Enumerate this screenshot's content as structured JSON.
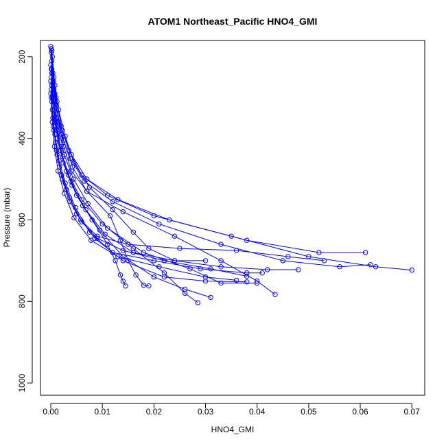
{
  "chart_data": {
    "type": "scatter",
    "title": "ATOM1 Northeast_Pacific HNO4_GMI",
    "xlabel": "HNO4_GMI",
    "ylabel": "Pressure (mbar)",
    "xlim": [
      -0.002,
      0.0725
    ],
    "ylim": [
      1030,
      160
    ],
    "y_reversed": true,
    "x_ticks": [
      0.0,
      0.01,
      0.02,
      0.03,
      0.04,
      0.05,
      0.06,
      0.07
    ],
    "x_tick_labels": [
      "0.00",
      "0.01",
      "0.02",
      "0.03",
      "0.04",
      "0.05",
      "0.06",
      "0.07"
    ],
    "y_ticks": [
      200,
      400,
      600,
      800,
      1000
    ],
    "y_tick_labels": [
      "200",
      "400",
      "600",
      "800",
      "1000"
    ],
    "grid": false,
    "legend": "none",
    "line_color": "#0000ff",
    "marker": "open-circle",
    "series": [
      {
        "x": [
          0.0,
          0.0002,
          0.0008,
          0.0015,
          0.0025,
          0.004,
          0.007,
          0.014,
          0.024,
          0.033,
          0.04,
          0.0435
        ],
        "y": [
          175,
          230,
          290,
          360,
          420,
          480,
          530,
          580,
          640,
          700,
          750,
          783
        ]
      },
      {
        "x": [
          0.0001,
          0.0004,
          0.001,
          0.002,
          0.0035,
          0.006,
          0.011,
          0.02,
          0.035,
          0.05,
          0.063,
          0.07
        ],
        "y": [
          180,
          240,
          300,
          370,
          430,
          490,
          540,
          590,
          640,
          690,
          715,
          723
        ]
      },
      {
        "x": [
          0.0002,
          0.0006,
          0.0012,
          0.0022,
          0.004,
          0.007,
          0.013,
          0.023,
          0.038,
          0.052,
          0.061
        ],
        "y": [
          185,
          250,
          310,
          380,
          440,
          500,
          550,
          600,
          650,
          680,
          680
        ]
      },
      {
        "x": [
          0.0001,
          0.0005,
          0.0011,
          0.002,
          0.0038,
          0.0065,
          0.012,
          0.021,
          0.033,
          0.045,
          0.056,
          0.062
        ],
        "y": [
          190,
          260,
          320,
          390,
          450,
          505,
          555,
          610,
          660,
          700,
          715,
          710
        ]
      },
      {
        "x": [
          0.0003,
          0.0008,
          0.0015,
          0.0028,
          0.0045,
          0.0075,
          0.012,
          0.016,
          0.019,
          0.024,
          0.03
        ],
        "y": [
          200,
          270,
          330,
          395,
          460,
          520,
          575,
          630,
          670,
          700,
          700
        ]
      },
      {
        "x": [
          0.0002,
          0.0006,
          0.0013,
          0.0025,
          0.0042,
          0.007,
          0.0115,
          0.0135,
          0.015,
          0.0165,
          0.018,
          0.019
        ],
        "y": [
          210,
          280,
          340,
          405,
          470,
          530,
          590,
          650,
          700,
          735,
          760,
          762
        ]
      },
      {
        "x": [
          0.0,
          0.0004,
          0.001,
          0.0018,
          0.003,
          0.005,
          0.008,
          0.011,
          0.0125,
          0.0135,
          0.014,
          0.0145
        ],
        "y": [
          220,
          290,
          350,
          420,
          480,
          540,
          600,
          660,
          700,
          735,
          750,
          762
        ]
      },
      {
        "x": [
          0.0001,
          0.0003,
          0.0009,
          0.0019,
          0.0034,
          0.006,
          0.01,
          0.016,
          0.022,
          0.026,
          0.0285
        ],
        "y": [
          230,
          300,
          360,
          430,
          490,
          550,
          610,
          670,
          730,
          780,
          803
        ]
      },
      {
        "x": [
          0.0002,
          0.0007,
          0.0014,
          0.0026,
          0.0044,
          0.0072,
          0.011,
          0.018,
          0.027,
          0.033,
          0.04
        ],
        "y": [
          240,
          310,
          370,
          440,
          500,
          560,
          620,
          680,
          720,
          755,
          755
        ]
      },
      {
        "x": [
          0.0001,
          0.0005,
          0.0012,
          0.0023,
          0.0039,
          0.0062,
          0.0095,
          0.014,
          0.02,
          0.026,
          0.031
        ],
        "y": [
          250,
          320,
          380,
          445,
          505,
          565,
          625,
          690,
          740,
          770,
          790
        ]
      },
      {
        "x": [
          0.0,
          0.0003,
          0.0008,
          0.0016,
          0.0028,
          0.0048,
          0.0075,
          0.012,
          0.02,
          0.029,
          0.038,
          0.041
        ],
        "y": [
          260,
          330,
          390,
          455,
          510,
          570,
          630,
          680,
          700,
          720,
          730,
          730
        ]
      },
      {
        "x": [
          0.0002,
          0.0006,
          0.0013,
          0.0024,
          0.0041,
          0.0068,
          0.0105,
          0.016,
          0.024,
          0.033,
          0.042,
          0.048
        ],
        "y": [
          270,
          340,
          400,
          460,
          515,
          575,
          635,
          680,
          700,
          715,
          722,
          722
        ]
      },
      {
        "x": [
          0.0001,
          0.0004,
          0.0009,
          0.0017,
          0.003,
          0.005,
          0.0085,
          0.014,
          0.022,
          0.03,
          0.038
        ],
        "y": [
          280,
          350,
          410,
          470,
          525,
          585,
          645,
          700,
          740,
          750,
          752
        ]
      },
      {
        "x": [
          0.0,
          0.0003,
          0.0007,
          0.0014,
          0.0026,
          0.0045,
          0.0078,
          0.013,
          0.021,
          0.03,
          0.036
        ],
        "y": [
          290,
          360,
          420,
          480,
          535,
          595,
          650,
          690,
          715,
          740,
          748
        ]
      },
      {
        "x": [
          0.0001,
          0.0005,
          0.0011,
          0.0021,
          0.0036,
          0.0058,
          0.009,
          0.015,
          0.025,
          0.036,
          0.046,
          0.053
        ],
        "y": [
          300,
          370,
          430,
          490,
          545,
          600,
          640,
          660,
          670,
          675,
          690,
          700
        ]
      },
      {
        "x": [
          0.0002,
          0.0006,
          0.0012,
          0.0022,
          0.0037,
          0.006,
          0.009,
          0.014,
          0.022,
          0.031,
          0.038
        ],
        "y": [
          310,
          380,
          440,
          500,
          555,
          605,
          645,
          675,
          700,
          720,
          738
        ]
      }
    ]
  }
}
